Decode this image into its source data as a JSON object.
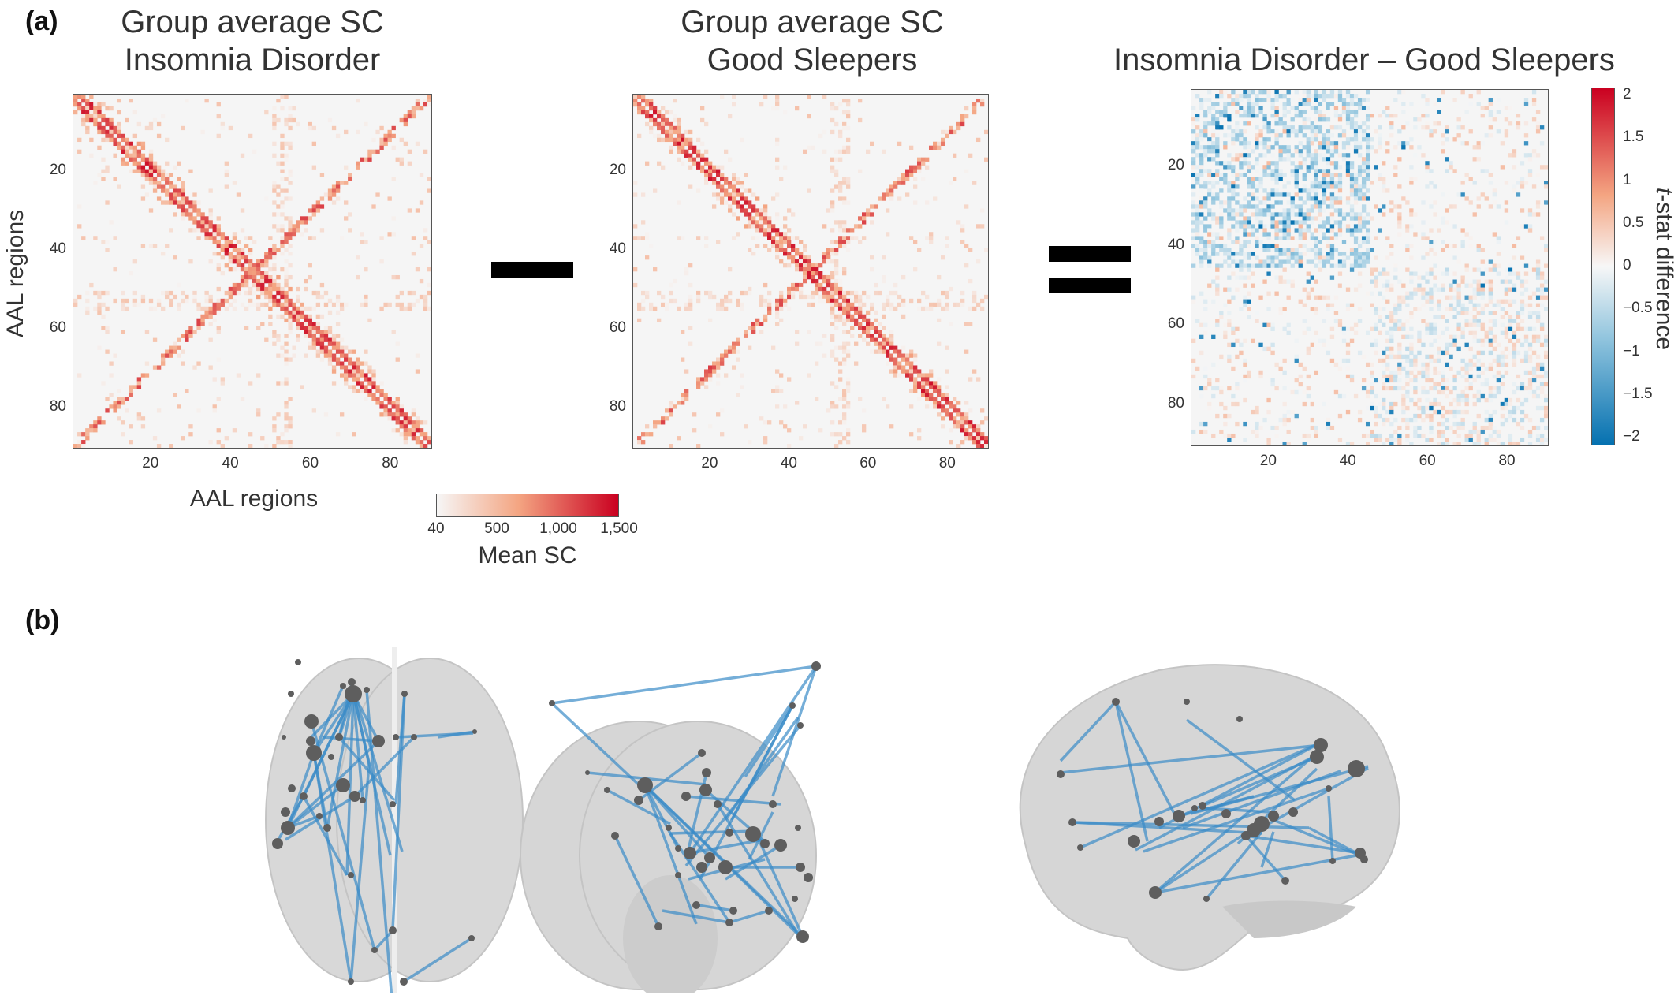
{
  "panels": {
    "a_label": "(a)",
    "b_label": "(b)"
  },
  "matrix_titles": {
    "insomnia_line1": "Group average SC",
    "insomnia_line2": "Insomnia Disorder",
    "good_line1": "Group average SC",
    "good_line2": "Good Sleepers",
    "diff_line1": "Insomnia Disorder – Good Sleepers"
  },
  "axes": {
    "xlabel": "AAL regions",
    "ylabel": "AAL regions",
    "ticks": [
      "20",
      "40",
      "60",
      "80"
    ]
  },
  "sc_colorbar": {
    "ticks": [
      "40",
      "500",
      "1,000",
      "1,500"
    ],
    "label": "Mean SC",
    "colors": [
      "#f6f6f6",
      "#f4a582",
      "#ca0020"
    ]
  },
  "t_colorbar": {
    "ticks": [
      "2",
      "1.5",
      "1",
      "0.5",
      "0",
      "−0.5",
      "−1",
      "−1.5",
      "−2"
    ],
    "label_italic": "t",
    "label_rest": "-stat difference",
    "colors": [
      "#0571b0",
      "#92c5de",
      "#f7f7f7",
      "#f4a582",
      "#ca0020"
    ]
  },
  "chart_data": [
    {
      "type": "heatmap",
      "title": "Group average SC Insomnia Disorder",
      "xlabel": "AAL regions",
      "ylabel": "AAL regions",
      "n_regions": 90,
      "xlim": [
        1,
        90
      ],
      "ylim": [
        1,
        90
      ],
      "xticks": [
        20,
        40,
        60,
        80
      ],
      "yticks": [
        20,
        40,
        60,
        80
      ],
      "value_range": [
        40,
        1500
      ],
      "colorbar_label": "Mean SC"
    },
    {
      "type": "heatmap",
      "title": "Group average SC Good Sleepers",
      "n_regions": 90,
      "xlim": [
        1,
        90
      ],
      "ylim": [
        1,
        90
      ],
      "xticks": [
        20,
        40,
        60,
        80
      ],
      "yticks": [
        20,
        40,
        60,
        80
      ],
      "value_range": [
        40,
        1500
      ],
      "colorbar_label": "Mean SC"
    },
    {
      "type": "heatmap",
      "title": "Insomnia Disorder – Good Sleepers",
      "n_regions": 90,
      "xlim": [
        1,
        90
      ],
      "ylim": [
        1,
        90
      ],
      "xticks": [
        20,
        40,
        60,
        80
      ],
      "yticks": [
        20,
        40,
        60,
        80
      ],
      "value_range": [
        -2,
        2
      ],
      "colorbar_label": "t-stat difference"
    }
  ]
}
